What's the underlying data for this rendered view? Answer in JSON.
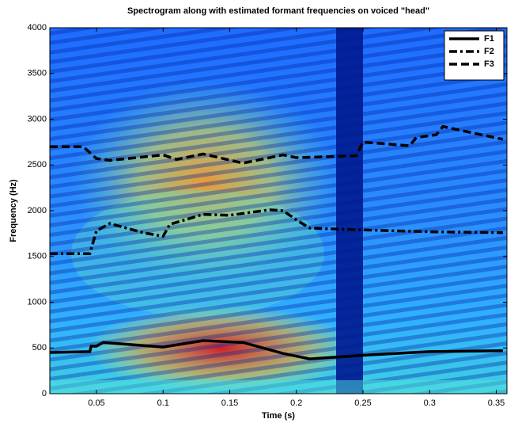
{
  "chart_data": {
    "type": "line",
    "title": "Spectrogram along with estimated formant frequencies on voiced \"head\"",
    "xlabel": "Time (s)",
    "ylabel": "Frequency (Hz)",
    "xlim": [
      0.015,
      0.358
    ],
    "ylim": [
      0,
      4000
    ],
    "xticks": [
      0.05,
      0.1,
      0.15,
      0.2,
      0.25,
      0.3,
      0.35
    ],
    "yticks": [
      0,
      500,
      1000,
      1500,
      2000,
      2500,
      3000,
      3500,
      4000
    ],
    "legend": "upper right",
    "series": [
      {
        "name": "F1",
        "color": "#000000",
        "style": "solid",
        "x": [
          0.015,
          0.045,
          0.046,
          0.05,
          0.055,
          0.1,
          0.13,
          0.16,
          0.19,
          0.21,
          0.25,
          0.3,
          0.355
        ],
        "values": [
          450,
          460,
          520,
          520,
          560,
          510,
          580,
          560,
          440,
          380,
          420,
          460,
          470
        ]
      },
      {
        "name": "F2",
        "color": "#000000",
        "style": "dashdot",
        "x": [
          0.015,
          0.045,
          0.05,
          0.06,
          0.085,
          0.1,
          0.105,
          0.13,
          0.15,
          0.18,
          0.19,
          0.2,
          0.21,
          0.25,
          0.3,
          0.355
        ],
        "values": [
          1530,
          1530,
          1780,
          1860,
          1760,
          1720,
          1850,
          1960,
          1950,
          2010,
          2000,
          1900,
          1810,
          1790,
          1770,
          1760
        ]
      },
      {
        "name": "F3",
        "color": "#000000",
        "style": "dashed",
        "x": [
          0.015,
          0.04,
          0.05,
          0.06,
          0.1,
          0.11,
          0.13,
          0.16,
          0.19,
          0.2,
          0.245,
          0.25,
          0.285,
          0.29,
          0.305,
          0.31,
          0.355
        ],
        "values": [
          2700,
          2700,
          2570,
          2550,
          2610,
          2560,
          2620,
          2520,
          2610,
          2580,
          2600,
          2750,
          2710,
          2800,
          2830,
          2920,
          2780
        ]
      }
    ]
  }
}
